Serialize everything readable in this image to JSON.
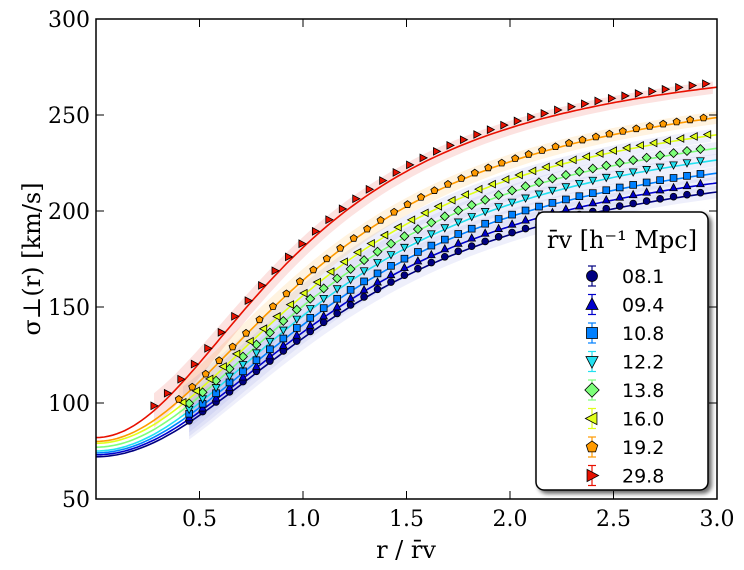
{
  "chart_data": {
    "type": "line",
    "xlabel": "r / r̄v",
    "ylabel": "σ⊥(r) [km/s]",
    "xlim": [
      0.0,
      3.0
    ],
    "ylim": [
      50,
      300
    ],
    "xticks": [
      0.5,
      1.0,
      1.5,
      2.0,
      2.5,
      3.0
    ],
    "xtick_labels": [
      "0.5",
      "1.0",
      "1.5",
      "2.0",
      "2.5",
      "3.0"
    ],
    "yticks": [
      50,
      100,
      150,
      200,
      250,
      300
    ],
    "ytick_labels": [
      "50",
      "100",
      "150",
      "200",
      "250",
      "300"
    ],
    "legend": {
      "title": "r̄v [h⁻¹ Mpc]",
      "placement": "lower-right"
    },
    "series": [
      {
        "name": "08.1",
        "color": "#000080",
        "marker": "circle",
        "x_start": 0.45,
        "model": {
          "a": 72,
          "b": 163,
          "c": 1.28,
          "d": 2.0
        }
      },
      {
        "name": "09.4",
        "color": "#0000cc",
        "marker": "triangle-up",
        "x_start": 0.45,
        "model": {
          "a": 73,
          "b": 167,
          "c": 1.27,
          "d": 2.0
        }
      },
      {
        "name": "10.8",
        "color": "#0080ff",
        "marker": "square",
        "x_start": 0.45,
        "model": {
          "a": 74,
          "b": 171,
          "c": 1.25,
          "d": 2.0
        }
      },
      {
        "name": "12.2",
        "color": "#22e0f0",
        "marker": "triangle-down",
        "x_start": 0.45,
        "model": {
          "a": 75,
          "b": 177,
          "c": 1.23,
          "d": 2.0
        }
      },
      {
        "name": "13.8",
        "color": "#7dff7a",
        "marker": "diamond",
        "x_start": 0.45,
        "model": {
          "a": 77,
          "b": 181,
          "c": 1.21,
          "d": 2.0
        }
      },
      {
        "name": "16.0",
        "color": "#e0ff1a",
        "marker": "triangle-left",
        "x_start": 0.42,
        "model": {
          "a": 79,
          "b": 186,
          "c": 1.19,
          "d": 2.0
        }
      },
      {
        "name": "19.2",
        "color": "#ff9a00",
        "marker": "pentagon",
        "x_start": 0.4,
        "model": {
          "a": 80,
          "b": 193,
          "c": 1.14,
          "d": 2.0
        }
      },
      {
        "name": "29.8",
        "color": "#e81000",
        "marker": "triangle-right",
        "x_start": 0.28,
        "model": {
          "a": 82,
          "b": 204,
          "c": 1.03,
          "d": 2.0
        }
      }
    ],
    "band_color": "#9fa8e8"
  }
}
